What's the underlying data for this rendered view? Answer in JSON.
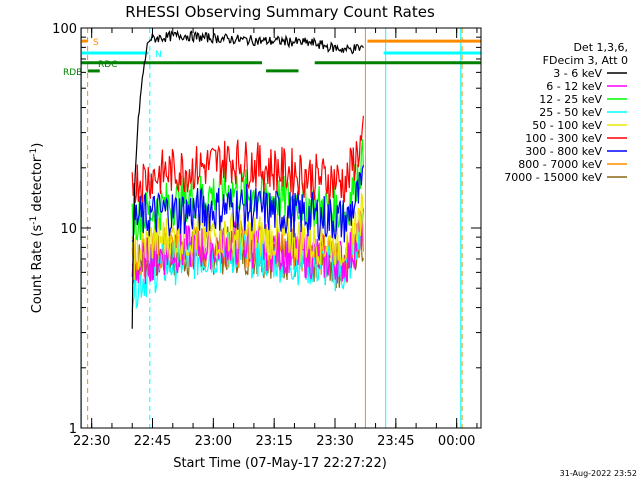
{
  "chart_data": {
    "type": "line",
    "title": "RHESSI Observing Summary Count Rates",
    "xlabel": "Start Time (07-May-17 22:27:22)",
    "ylabel": "Count Rate (s",
    "ylabel_sup": "-1",
    "ylabel_tail": " detector",
    "ylabel_tail_sup": "-1",
    "ylabel_close": ")",
    "y_scale": "log",
    "ylim": [
      1,
      100
    ],
    "xlim": [
      "22:27:22",
      "00:06:00"
    ],
    "x_ticks": [
      "22:30",
      "22:45",
      "23:00",
      "23:15",
      "23:30",
      "23:45",
      "00:00"
    ],
    "y_ticks": [
      "1",
      "10",
      "100"
    ],
    "timestamp": "31-Aug-2022 23:52",
    "legend_header": [
      "Det 1,3,6,",
      "FDecim 3, Att 0"
    ],
    "legend_position": "right",
    "series": [
      {
        "name": "3 - 6 keV",
        "color": "#000000",
        "start": "22:40",
        "end": "23:37",
        "values": [
          3,
          88,
          90,
          92,
          90,
          89,
          88,
          87,
          86,
          86,
          85,
          84,
          80,
          78,
          80
        ]
      },
      {
        "name": "6 - 12 keV",
        "color": "#ff00ff",
        "start": "22:40",
        "end": "23:37",
        "values": [
          6,
          7,
          7.5,
          7.8,
          8,
          8.2,
          8.5,
          8.3,
          8,
          7.8,
          7.5,
          7.2,
          7,
          6.8,
          10
        ]
      },
      {
        "name": "12 - 25 keV",
        "color": "#00ff00",
        "start": "22:40",
        "end": "23:37",
        "values": [
          11,
          12,
          13,
          14,
          14.5,
          15,
          15.5,
          15,
          14.5,
          14,
          13.5,
          13,
          12.5,
          12,
          22
        ]
      },
      {
        "name": "25 - 50 keV",
        "color": "#00ffff",
        "start": "22:40",
        "end": "23:37",
        "values": [
          5,
          6,
          6.5,
          7,
          7.2,
          7.5,
          7.6,
          7.4,
          7.2,
          7,
          6.8,
          6.6,
          6.4,
          6,
          10
        ]
      },
      {
        "name": "50 - 100 keV",
        "color": "#e8e800",
        "start": "22:40",
        "end": "23:37",
        "values": [
          7,
          8.5,
          9,
          9,
          9.2,
          9.3,
          9.4,
          9.2,
          9,
          9,
          8.8,
          8.6,
          8.4,
          8.2,
          12
        ]
      },
      {
        "name": "100 - 300 keV",
        "color": "#ff0000",
        "start": "22:40",
        "end": "23:37",
        "values": [
          17,
          18,
          19,
          19.5,
          20,
          21,
          22,
          21,
          20,
          19.5,
          19,
          18,
          17.5,
          17,
          28
        ]
      },
      {
        "name": "300 - 800 keV",
        "color": "#0000ff",
        "start": "22:40",
        "end": "23:37",
        "values": [
          11,
          11.5,
          12,
          12,
          12.2,
          12.5,
          12.8,
          12.6,
          12.2,
          12,
          11.8,
          11.5,
          11.2,
          10.8,
          16
        ]
      },
      {
        "name": "800 - 7000 keV",
        "color": "#ff8c00",
        "start": "22:40",
        "end": "23:37",
        "values": [
          7,
          7.5,
          7.8,
          8,
          8,
          8.2,
          8.4,
          8.2,
          8,
          7.8,
          7.6,
          7.4,
          7.2,
          7,
          10
        ]
      },
      {
        "name": "7000 - 15000 keV",
        "color": "#8b6914",
        "start": "22:40",
        "end": "23:37",
        "values": [
          6.5,
          7,
          7.2,
          7.4,
          7.5,
          7.6,
          7.8,
          7.6,
          7.4,
          7.2,
          7,
          6.8,
          6.6,
          6.4,
          9
        ]
      }
    ],
    "flag_lines": [
      {
        "label": "S",
        "color": "#ff8c00",
        "segments": [
          [
            "22:27:22",
            "22:29"
          ],
          [
            "23:38",
            "00:06"
          ]
        ],
        "level": 86
      },
      {
        "label": "N",
        "color": "#00ffff",
        "segments": [
          [
            "22:27:22",
            "22:44"
          ],
          [
            "23:42",
            "00:06"
          ]
        ],
        "level": 75
      },
      {
        "label": "RDC",
        "color": "#008000",
        "segments": [
          [
            "22:27:22",
            "23:12"
          ],
          [
            "23:25",
            "00:06"
          ]
        ],
        "level": 67
      },
      {
        "label": "RDB",
        "color": "#008000",
        "segments": [
          [
            "22:29",
            "22:32"
          ],
          [
            "23:13",
            "23:21"
          ]
        ],
        "level": 61
      }
    ],
    "vertical_markers": [
      {
        "time": "22:27:30",
        "color": "#00ffff",
        "style": "solid"
      },
      {
        "time": "22:29:00",
        "color": "#ff8c00",
        "style": "dashed"
      },
      {
        "time": "22:44:20",
        "color": "#00ffff",
        "style": "dashed"
      },
      {
        "time": "23:37:30",
        "color": "#ff8c00",
        "style": "solid"
      },
      {
        "time": "23:42:30",
        "color": "#00ffff",
        "style": "solid"
      },
      {
        "time": "00:01:00",
        "color": "#00ffff",
        "style": "solid"
      },
      {
        "time": "00:01:20",
        "color": "#ff8c00",
        "style": "dashed"
      }
    ]
  }
}
